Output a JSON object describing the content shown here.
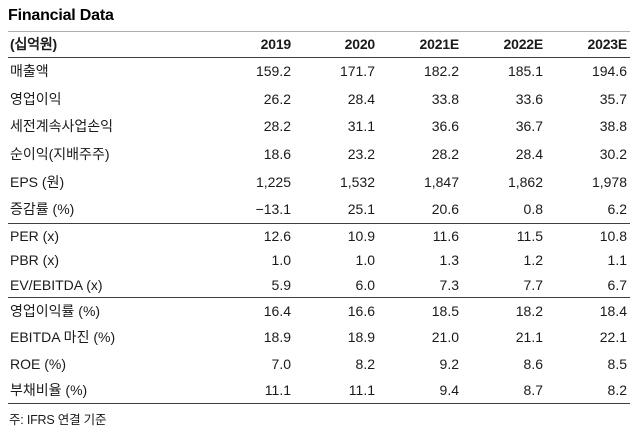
{
  "page": {
    "title": "Financial Data",
    "footnote": "주: IFRS 연결 기준"
  },
  "table": {
    "unit_label": "(십억원)",
    "columns": [
      "2019",
      "2020",
      "2021E",
      "2022E",
      "2023E"
    ],
    "rows": [
      {
        "label": "매출액",
        "values": [
          "159.2",
          "171.7",
          "182.2",
          "185.1",
          "194.6"
        ]
      },
      {
        "label": "영업이익",
        "values": [
          "26.2",
          "28.4",
          "33.8",
          "33.6",
          "35.7"
        ]
      },
      {
        "label": "세전계속사업손익",
        "values": [
          "28.2",
          "31.1",
          "36.6",
          "36.7",
          "38.8"
        ]
      },
      {
        "label": "순이익(지배주주)",
        "values": [
          "18.6",
          "23.2",
          "28.2",
          "28.4",
          "30.2"
        ]
      },
      {
        "label": "EPS (원)",
        "values": [
          "1,225",
          "1,532",
          "1,847",
          "1,862",
          "1,978"
        ]
      },
      {
        "label": "증감률 (%)",
        "values": [
          "−13.1",
          "25.1",
          "20.6",
          "0.8",
          "6.2"
        ]
      },
      {
        "label": "PER (x)",
        "values": [
          "12.6",
          "10.9",
          "11.6",
          "11.5",
          "10.8"
        ]
      },
      {
        "label": "PBR (x)",
        "values": [
          "1.0",
          "1.0",
          "1.3",
          "1.2",
          "1.1"
        ]
      },
      {
        "label": "EV/EBITDA (x)",
        "values": [
          "5.9",
          "6.0",
          "7.3",
          "7.7",
          "6.7"
        ]
      },
      {
        "label": "영업이익률 (%)",
        "values": [
          "16.4",
          "16.6",
          "18.5",
          "18.2",
          "18.4"
        ]
      },
      {
        "label": "EBITDA 마진 (%)",
        "values": [
          "18.9",
          "18.9",
          "21.0",
          "21.1",
          "22.1"
        ]
      },
      {
        "label": "ROE (%)",
        "values": [
          "7.0",
          "8.2",
          "9.2",
          "8.6",
          "8.5"
        ]
      },
      {
        "label": "부채비율 (%)",
        "values": [
          "11.1",
          "11.1",
          "9.4",
          "8.7",
          "8.2"
        ]
      }
    ]
  }
}
